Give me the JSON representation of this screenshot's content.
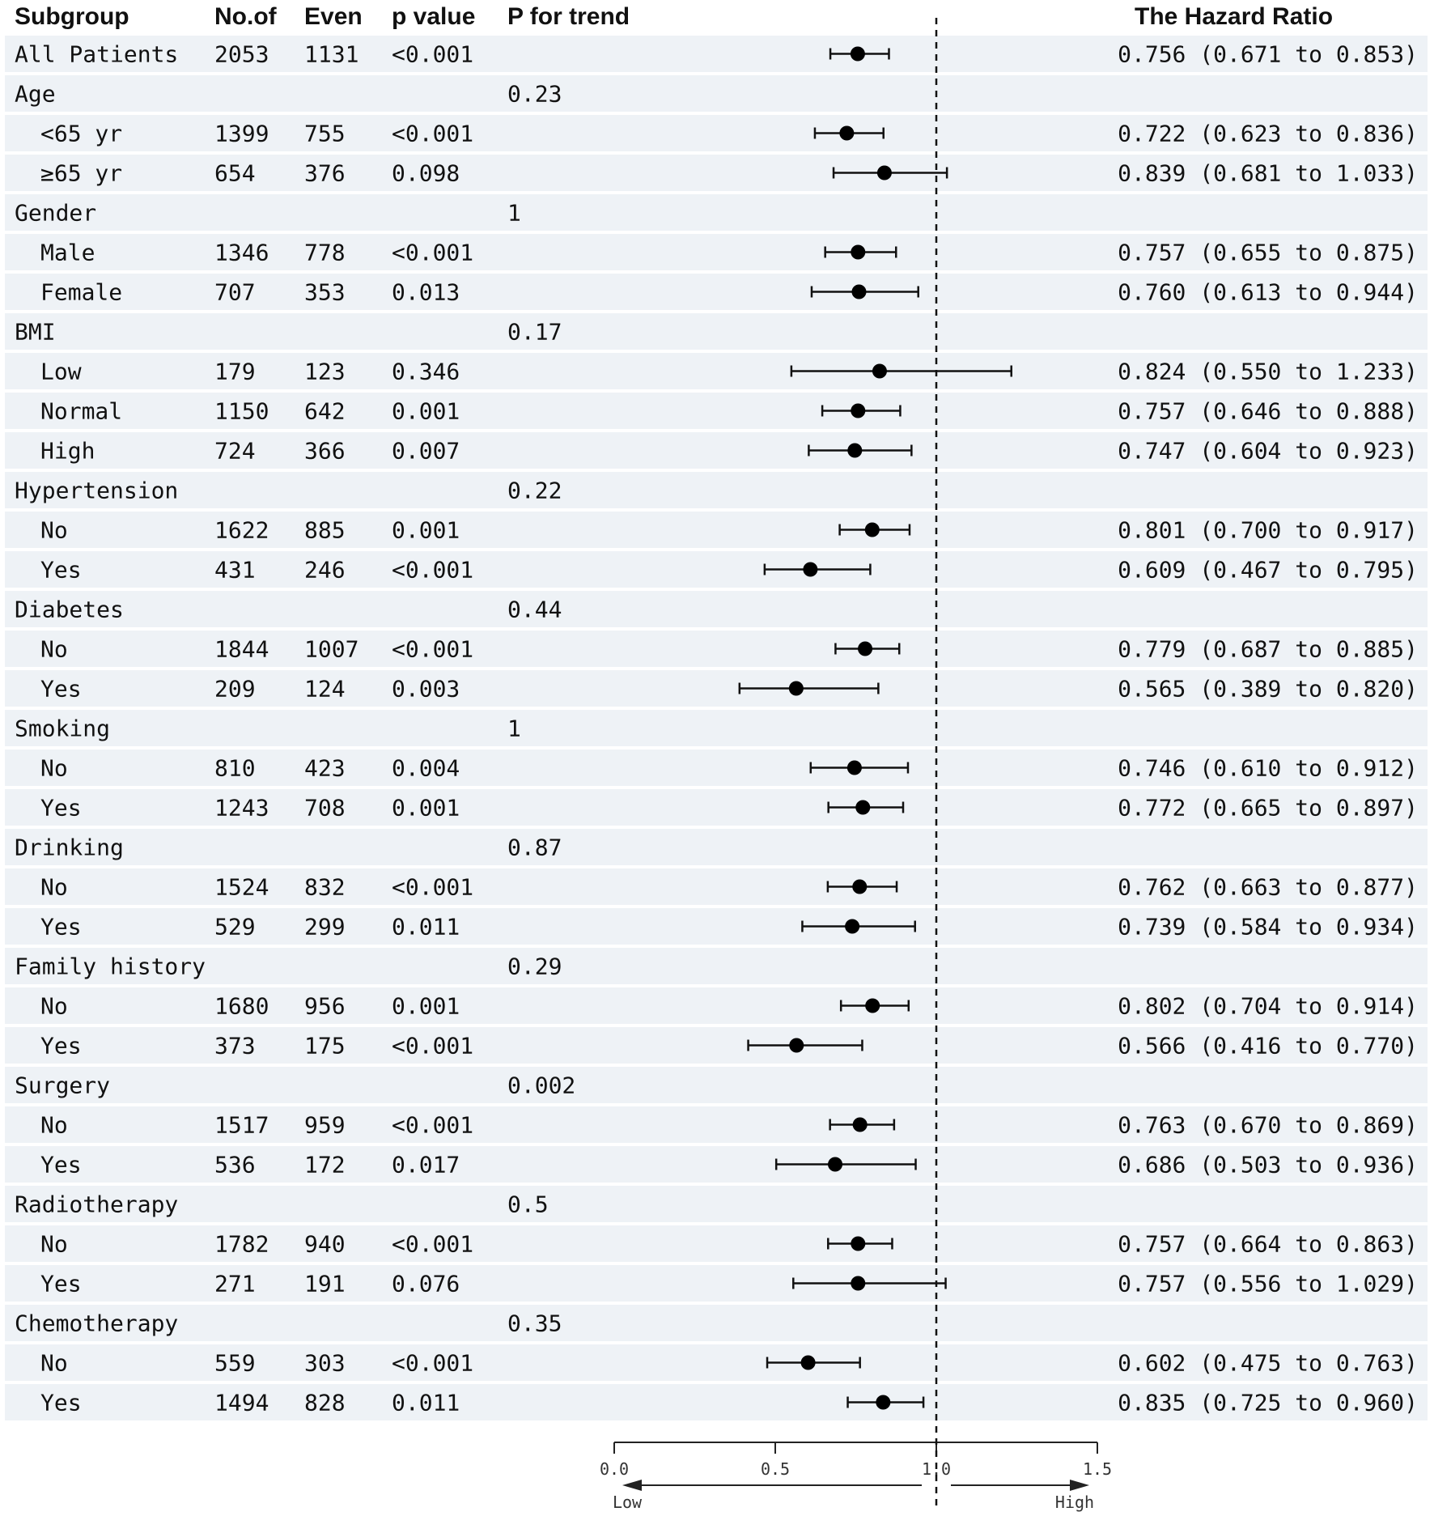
{
  "headers": {
    "subgroup": "Subgroup",
    "n": "No.of",
    "events": "Even",
    "p": "p value",
    "trend": "P for trend",
    "hr": "The Hazard Ratio"
  },
  "axis": {
    "ticks": [
      0.0,
      0.5,
      1.0,
      1.5
    ],
    "tick_labels": [
      "0.0",
      "0.5",
      "1.0",
      "1.5"
    ],
    "xlim": [
      0.0,
      1.5
    ],
    "reference_line": 1.0,
    "low_label": "Low",
    "high_label": "High"
  },
  "rows": [
    {
      "label": "All Patients",
      "indent": false,
      "n": "2053",
      "events": "1131",
      "p": "<0.001",
      "trend": "",
      "hr": 0.756,
      "lo": 0.671,
      "hi": 0.853,
      "hr_text": "0.756 (0.671 to 0.853)"
    },
    {
      "label": "Age",
      "indent": false,
      "n": "",
      "events": "",
      "p": "",
      "trend": "0.23",
      "hr": null,
      "lo": null,
      "hi": null,
      "hr_text": ""
    },
    {
      "label": "<65 yr",
      "indent": true,
      "n": "1399",
      "events": "755",
      "p": "<0.001",
      "trend": "",
      "hr": 0.722,
      "lo": 0.623,
      "hi": 0.836,
      "hr_text": "0.722 (0.623 to 0.836)"
    },
    {
      "label": "≥65 yr",
      "indent": true,
      "n": "654",
      "events": "376",
      "p": "0.098",
      "trend": "",
      "hr": 0.839,
      "lo": 0.681,
      "hi": 1.033,
      "hr_text": "0.839 (0.681 to 1.033)"
    },
    {
      "label": "Gender",
      "indent": false,
      "n": "",
      "events": "",
      "p": "",
      "trend": "1",
      "hr": null,
      "lo": null,
      "hi": null,
      "hr_text": ""
    },
    {
      "label": "Male",
      "indent": true,
      "n": "1346",
      "events": "778",
      "p": "<0.001",
      "trend": "",
      "hr": 0.757,
      "lo": 0.655,
      "hi": 0.875,
      "hr_text": "0.757 (0.655 to 0.875)"
    },
    {
      "label": "Female",
      "indent": true,
      "n": "707",
      "events": "353",
      "p": "0.013",
      "trend": "",
      "hr": 0.76,
      "lo": 0.613,
      "hi": 0.944,
      "hr_text": "0.760 (0.613 to 0.944)"
    },
    {
      "label": "BMI",
      "indent": false,
      "n": "",
      "events": "",
      "p": "",
      "trend": "0.17",
      "hr": null,
      "lo": null,
      "hi": null,
      "hr_text": ""
    },
    {
      "label": "Low",
      "indent": true,
      "n": "179",
      "events": "123",
      "p": "0.346",
      "trend": "",
      "hr": 0.824,
      "lo": 0.55,
      "hi": 1.233,
      "hr_text": "0.824 (0.550 to 1.233)"
    },
    {
      "label": "Normal",
      "indent": true,
      "n": "1150",
      "events": "642",
      "p": "0.001",
      "trend": "",
      "hr": 0.757,
      "lo": 0.646,
      "hi": 0.888,
      "hr_text": "0.757 (0.646 to 0.888)"
    },
    {
      "label": "High",
      "indent": true,
      "n": "724",
      "events": "366",
      "p": "0.007",
      "trend": "",
      "hr": 0.747,
      "lo": 0.604,
      "hi": 0.923,
      "hr_text": "0.747 (0.604 to 0.923)"
    },
    {
      "label": "Hypertension",
      "indent": false,
      "n": "",
      "events": "",
      "p": "",
      "trend": "0.22",
      "hr": null,
      "lo": null,
      "hi": null,
      "hr_text": ""
    },
    {
      "label": "No",
      "indent": true,
      "n": "1622",
      "events": "885",
      "p": "0.001",
      "trend": "",
      "hr": 0.801,
      "lo": 0.7,
      "hi": 0.917,
      "hr_text": "0.801 (0.700 to 0.917)"
    },
    {
      "label": "Yes",
      "indent": true,
      "n": "431",
      "events": "246",
      "p": "<0.001",
      "trend": "",
      "hr": 0.609,
      "lo": 0.467,
      "hi": 0.795,
      "hr_text": "0.609 (0.467 to 0.795)"
    },
    {
      "label": "Diabetes",
      "indent": false,
      "n": "",
      "events": "",
      "p": "",
      "trend": "0.44",
      "hr": null,
      "lo": null,
      "hi": null,
      "hr_text": ""
    },
    {
      "label": "No",
      "indent": true,
      "n": "1844",
      "events": "1007",
      "p": "<0.001",
      "trend": "",
      "hr": 0.779,
      "lo": 0.687,
      "hi": 0.885,
      "hr_text": "0.779 (0.687 to 0.885)"
    },
    {
      "label": "Yes",
      "indent": true,
      "n": "209",
      "events": "124",
      "p": "0.003",
      "trend": "",
      "hr": 0.565,
      "lo": 0.389,
      "hi": 0.82,
      "hr_text": "0.565 (0.389 to 0.820)"
    },
    {
      "label": "Smoking",
      "indent": false,
      "n": "",
      "events": "",
      "p": "",
      "trend": "1",
      "hr": null,
      "lo": null,
      "hi": null,
      "hr_text": ""
    },
    {
      "label": "No",
      "indent": true,
      "n": "810",
      "events": "423",
      "p": "0.004",
      "trend": "",
      "hr": 0.746,
      "lo": 0.61,
      "hi": 0.912,
      "hr_text": "0.746 (0.610 to 0.912)"
    },
    {
      "label": "Yes",
      "indent": true,
      "n": "1243",
      "events": "708",
      "p": "0.001",
      "trend": "",
      "hr": 0.772,
      "lo": 0.665,
      "hi": 0.897,
      "hr_text": "0.772 (0.665 to 0.897)"
    },
    {
      "label": "Drinking",
      "indent": false,
      "n": "",
      "events": "",
      "p": "",
      "trend": "0.87",
      "hr": null,
      "lo": null,
      "hi": null,
      "hr_text": ""
    },
    {
      "label": "No",
      "indent": true,
      "n": "1524",
      "events": "832",
      "p": "<0.001",
      "trend": "",
      "hr": 0.762,
      "lo": 0.663,
      "hi": 0.877,
      "hr_text": "0.762 (0.663 to 0.877)"
    },
    {
      "label": "Yes",
      "indent": true,
      "n": "529",
      "events": "299",
      "p": "0.011",
      "trend": "",
      "hr": 0.739,
      "lo": 0.584,
      "hi": 0.934,
      "hr_text": "0.739 (0.584 to 0.934)"
    },
    {
      "label": "Family history",
      "indent": false,
      "n": "",
      "events": "",
      "p": "",
      "trend": "0.29",
      "hr": null,
      "lo": null,
      "hi": null,
      "hr_text": ""
    },
    {
      "label": "No",
      "indent": true,
      "n": "1680",
      "events": "956",
      "p": "0.001",
      "trend": "",
      "hr": 0.802,
      "lo": 0.704,
      "hi": 0.914,
      "hr_text": "0.802 (0.704 to 0.914)"
    },
    {
      "label": "Yes",
      "indent": true,
      "n": "373",
      "events": "175",
      "p": "<0.001",
      "trend": "",
      "hr": 0.566,
      "lo": 0.416,
      "hi": 0.77,
      "hr_text": "0.566 (0.416 to 0.770)"
    },
    {
      "label": "Surgery",
      "indent": false,
      "n": "",
      "events": "",
      "p": "",
      "trend": "0.002",
      "hr": null,
      "lo": null,
      "hi": null,
      "hr_text": ""
    },
    {
      "label": "No",
      "indent": true,
      "n": "1517",
      "events": "959",
      "p": "<0.001",
      "trend": "",
      "hr": 0.763,
      "lo": 0.67,
      "hi": 0.869,
      "hr_text": "0.763 (0.670 to 0.869)"
    },
    {
      "label": "Yes",
      "indent": true,
      "n": "536",
      "events": "172",
      "p": "0.017",
      "trend": "",
      "hr": 0.686,
      "lo": 0.503,
      "hi": 0.936,
      "hr_text": "0.686 (0.503 to 0.936)"
    },
    {
      "label": "Radiotherapy",
      "indent": false,
      "n": "",
      "events": "",
      "p": "",
      "trend": "0.5",
      "hr": null,
      "lo": null,
      "hi": null,
      "hr_text": ""
    },
    {
      "label": "No",
      "indent": true,
      "n": "1782",
      "events": "940",
      "p": "<0.001",
      "trend": "",
      "hr": 0.757,
      "lo": 0.664,
      "hi": 0.863,
      "hr_text": "0.757 (0.664 to 0.863)"
    },
    {
      "label": "Yes",
      "indent": true,
      "n": "271",
      "events": "191",
      "p": "0.076",
      "trend": "",
      "hr": 0.757,
      "lo": 0.556,
      "hi": 1.029,
      "hr_text": "0.757 (0.556 to 1.029)"
    },
    {
      "label": "Chemotherapy",
      "indent": false,
      "n": "",
      "events": "",
      "p": "",
      "trend": "0.35",
      "hr": null,
      "lo": null,
      "hi": null,
      "hr_text": ""
    },
    {
      "label": "No",
      "indent": true,
      "n": "559",
      "events": "303",
      "p": "<0.001",
      "trend": "",
      "hr": 0.602,
      "lo": 0.475,
      "hi": 0.763,
      "hr_text": "0.602 (0.475 to 0.763)"
    },
    {
      "label": "Yes",
      "indent": true,
      "n": "1494",
      "events": "828",
      "p": "0.011",
      "trend": "",
      "hr": 0.835,
      "lo": 0.725,
      "hi": 0.96,
      "hr_text": "0.835 (0.725 to 0.960)"
    }
  ],
  "chart_data": {
    "type": "forest",
    "title": "",
    "xlabel": "",
    "xlim": [
      0.0,
      1.5
    ],
    "reference_line": 1.0,
    "series": [
      {
        "name": "All Patients",
        "hr": 0.756,
        "ci": [
          0.671,
          0.853
        ]
      },
      {
        "name": "Age <65 yr",
        "hr": 0.722,
        "ci": [
          0.623,
          0.836
        ]
      },
      {
        "name": "Age ≥65 yr",
        "hr": 0.839,
        "ci": [
          0.681,
          1.033
        ]
      },
      {
        "name": "Gender Male",
        "hr": 0.757,
        "ci": [
          0.655,
          0.875
        ]
      },
      {
        "name": "Gender Female",
        "hr": 0.76,
        "ci": [
          0.613,
          0.944
        ]
      },
      {
        "name": "BMI Low",
        "hr": 0.824,
        "ci": [
          0.55,
          1.233
        ]
      },
      {
        "name": "BMI Normal",
        "hr": 0.757,
        "ci": [
          0.646,
          0.888
        ]
      },
      {
        "name": "BMI High",
        "hr": 0.747,
        "ci": [
          0.604,
          0.923
        ]
      },
      {
        "name": "Hypertension No",
        "hr": 0.801,
        "ci": [
          0.7,
          0.917
        ]
      },
      {
        "name": "Hypertension Yes",
        "hr": 0.609,
        "ci": [
          0.467,
          0.795
        ]
      },
      {
        "name": "Diabetes No",
        "hr": 0.779,
        "ci": [
          0.687,
          0.885
        ]
      },
      {
        "name": "Diabetes Yes",
        "hr": 0.565,
        "ci": [
          0.389,
          0.82
        ]
      },
      {
        "name": "Smoking No",
        "hr": 0.746,
        "ci": [
          0.61,
          0.912
        ]
      },
      {
        "name": "Smoking Yes",
        "hr": 0.772,
        "ci": [
          0.665,
          0.897
        ]
      },
      {
        "name": "Drinking No",
        "hr": 0.762,
        "ci": [
          0.663,
          0.877
        ]
      },
      {
        "name": "Drinking Yes",
        "hr": 0.739,
        "ci": [
          0.584,
          0.934
        ]
      },
      {
        "name": "Family history No",
        "hr": 0.802,
        "ci": [
          0.704,
          0.914
        ]
      },
      {
        "name": "Family history Yes",
        "hr": 0.566,
        "ci": [
          0.416,
          0.77
        ]
      },
      {
        "name": "Surgery No",
        "hr": 0.763,
        "ci": [
          0.67,
          0.869
        ]
      },
      {
        "name": "Surgery Yes",
        "hr": 0.686,
        "ci": [
          0.503,
          0.936
        ]
      },
      {
        "name": "Radiotherapy No",
        "hr": 0.757,
        "ci": [
          0.664,
          0.863
        ]
      },
      {
        "name": "Radiotherapy Yes",
        "hr": 0.757,
        "ci": [
          0.556,
          1.029
        ]
      },
      {
        "name": "Chemotherapy No",
        "hr": 0.602,
        "ci": [
          0.475,
          0.763
        ]
      },
      {
        "name": "Chemotherapy Yes",
        "hr": 0.835,
        "ci": [
          0.725,
          0.96
        ]
      }
    ]
  }
}
